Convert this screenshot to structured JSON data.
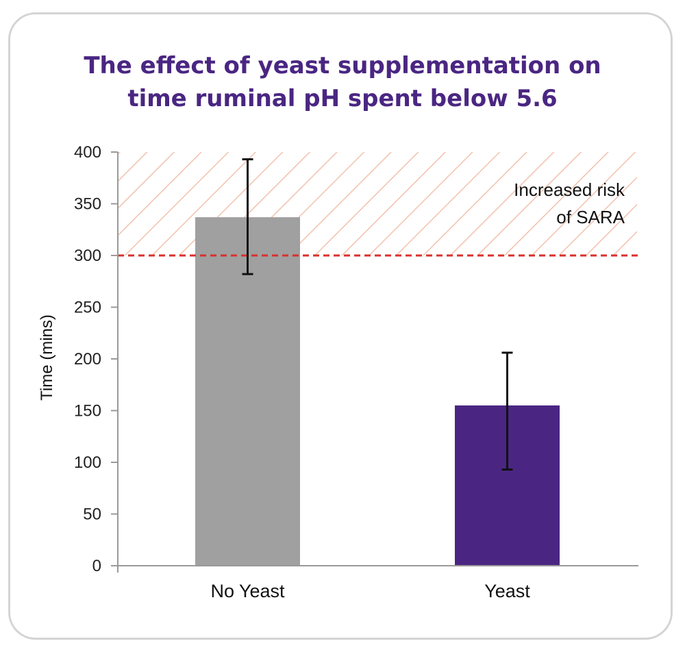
{
  "chart_data": {
    "type": "bar",
    "title_lines": [
      "The effect of yeast supplementation on",
      "time ruminal pH spent below 5.6"
    ],
    "xlabel": "",
    "ylabel": "Time (mins)",
    "ylim": [
      0,
      400
    ],
    "yticks": [
      0,
      50,
      100,
      150,
      200,
      250,
      300,
      350,
      400
    ],
    "categories": [
      "No Yeast",
      "Yeast"
    ],
    "values": [
      337,
      155
    ],
    "error_low": [
      282,
      93
    ],
    "error_high": [
      393,
      206
    ],
    "bar_colors": [
      "#a0a0a0",
      "#4a2682"
    ],
    "threshold": 300,
    "threshold_color": "#d9302c",
    "risk_region": [
      300,
      400
    ],
    "risk_hatch_color": "#f2c1ad",
    "annotation_lines": [
      "Increased risk",
      "of SARA"
    ],
    "grid": false,
    "legend": "none"
  }
}
